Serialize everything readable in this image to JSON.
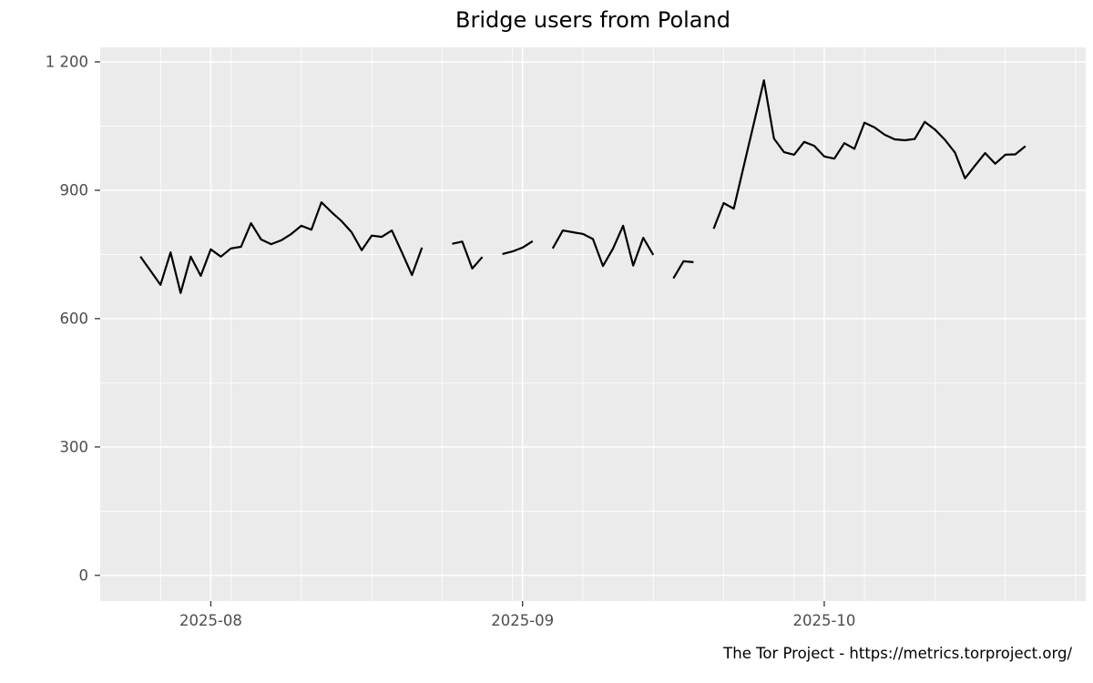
{
  "footer": {
    "text": "The Tor Project - https://metrics.torproject.org/"
  },
  "chart_data": {
    "type": "line",
    "title": "Bridge users from Poland",
    "xlabel": "",
    "ylabel": "",
    "ylim": [
      0,
      1200
    ],
    "yticks": [
      0,
      300,
      600,
      900,
      1200
    ],
    "ytick_labels": [
      "0",
      "300",
      "600",
      "900",
      "1 200"
    ],
    "minor_yticks": [
      150,
      450,
      750,
      1050
    ],
    "xlim": [
      "2025-07-21",
      "2025-10-27"
    ],
    "xticks": [
      "2025-08-01",
      "2025-09-01",
      "2025-10-01"
    ],
    "xtick_labels": [
      "2025-08",
      "2025-09",
      "2025-10"
    ],
    "minor_xticks": [
      "2025-07-27",
      "2025-08-03",
      "2025-08-10",
      "2025-08-17",
      "2025-08-24",
      "2025-08-31",
      "2025-09-07",
      "2025-09-14",
      "2025-09-21",
      "2025-09-28",
      "2025-10-05",
      "2025-10-12",
      "2025-10-19",
      "2025-10-26"
    ],
    "grid": "major and minor white gridlines on gray panel",
    "legend": "none",
    "panel_bg": "#ebebeb",
    "grid_color": "#ffffff",
    "line_color": "#000000",
    "tick_color": "#333333",
    "tick_label_color": "#4d4d4d",
    "series": [
      {
        "name": "Bridge users from Poland",
        "dates": [
          "2025-07-25",
          "2025-07-26",
          "2025-07-27",
          "2025-07-28",
          "2025-07-29",
          "2025-07-30",
          "2025-07-31",
          "2025-08-01",
          "2025-08-02",
          "2025-08-03",
          "2025-08-04",
          "2025-08-05",
          "2025-08-06",
          "2025-08-07",
          "2025-08-08",
          "2025-08-09",
          "2025-08-10",
          "2025-08-11",
          "2025-08-12",
          "2025-08-13",
          "2025-08-14",
          "2025-08-15",
          "2025-08-16",
          "2025-08-17",
          "2025-08-18",
          "2025-08-19",
          "2025-08-20",
          "2025-08-21",
          "2025-08-22",
          "2025-08-23",
          "2025-08-24",
          "2025-08-25",
          "2025-08-26",
          "2025-08-27",
          "2025-08-28",
          "2025-08-29",
          "2025-08-30",
          "2025-08-31",
          "2025-09-01",
          "2025-09-02",
          "2025-09-03",
          "2025-09-04",
          "2025-09-05",
          "2025-09-06",
          "2025-09-07",
          "2025-09-08",
          "2025-09-09",
          "2025-09-10",
          "2025-09-11",
          "2025-09-12",
          "2025-09-13",
          "2025-09-14",
          "2025-09-15",
          "2025-09-16",
          "2025-09-17",
          "2025-09-18",
          "2025-09-19",
          "2025-09-20",
          "2025-09-21",
          "2025-09-22",
          "2025-09-23",
          "2025-09-24",
          "2025-09-25",
          "2025-09-26",
          "2025-09-27",
          "2025-09-28",
          "2025-09-29",
          "2025-09-30",
          "2025-10-01",
          "2025-10-02",
          "2025-10-03",
          "2025-10-04",
          "2025-10-05",
          "2025-10-06",
          "2025-10-07",
          "2025-10-08",
          "2025-10-09",
          "2025-10-10",
          "2025-10-11",
          "2025-10-12",
          "2025-10-13",
          "2025-10-14",
          "2025-10-15",
          "2025-10-16",
          "2025-10-17",
          "2025-10-18",
          "2025-10-19",
          "2025-10-20",
          "2025-10-21"
        ],
        "values": [
          745,
          712,
          679,
          755,
          660,
          745,
          700,
          762,
          745,
          764,
          768,
          823,
          785,
          774,
          783,
          798,
          817,
          808,
          872,
          849,
          828,
          802,
          760,
          794,
          791,
          806,
          755,
          702,
          766,
          null,
          null,
          775,
          780,
          717,
          744,
          null,
          751,
          757,
          766,
          781,
          null,
          764,
          806,
          802,
          798,
          786,
          723,
          764,
          817,
          724,
          789,
          749,
          null,
          694,
          734,
          732,
          null,
          810,
          870,
          857,
          957,
          1057,
          1157,
          1021,
          989,
          983,
          1013,
          1004,
          979,
          974,
          1010,
          997,
          1058,
          1047,
          1030,
          1019,
          1017,
          1020,
          1060,
          1042,
          1018,
          988,
          928,
          958,
          987,
          962,
          983,
          984,
          1003
        ]
      }
    ]
  }
}
